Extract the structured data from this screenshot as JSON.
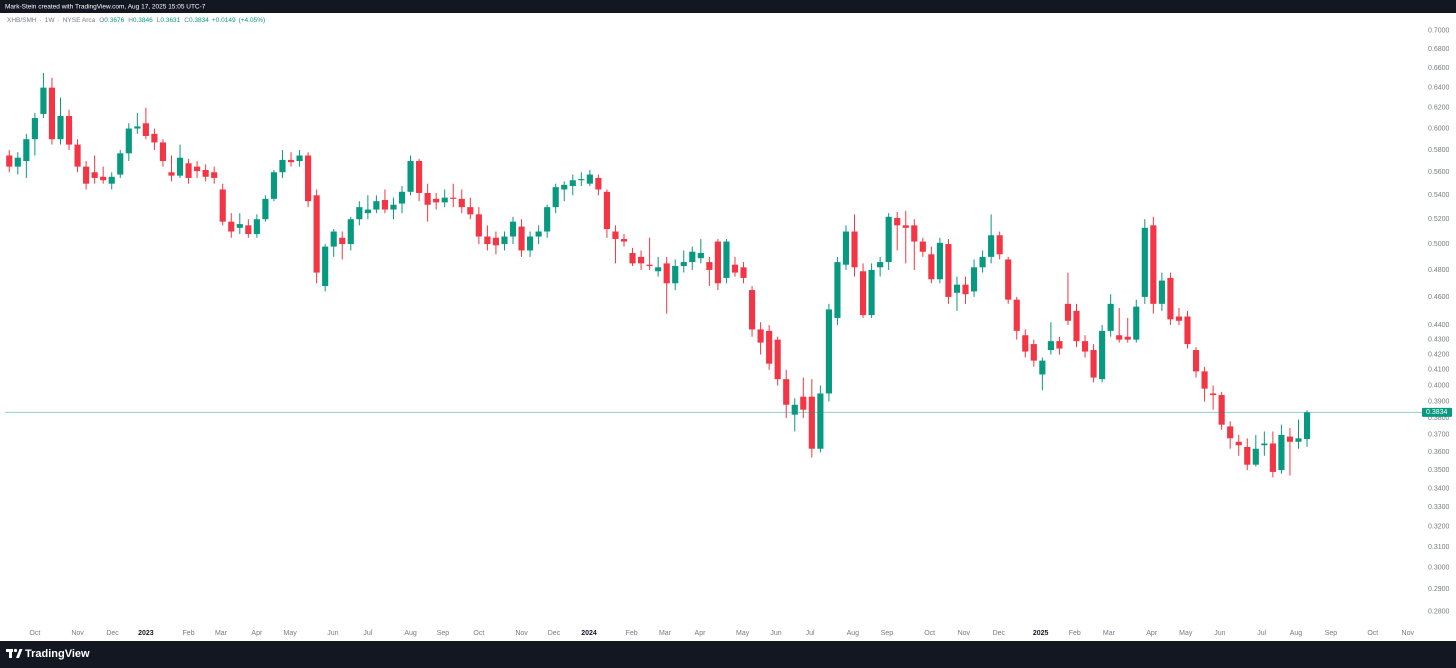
{
  "page": {
    "attribution": "Mark-Stein created with TradingView.com, Aug 17, 2025 15:05 UTC-7",
    "brand": "TradingView"
  },
  "chart_data": {
    "type": "candlestick",
    "symbol": "XHB/SMH",
    "interval": "1W",
    "exchange": "NYSE Arca",
    "ohlc_letters": [
      "O",
      "H",
      "L",
      "C"
    ],
    "change": "+0.0149",
    "change_pct": "(+4.05%)",
    "log_scale": true,
    "grid": false,
    "up_color": "#089981",
    "down_color": "#f23645",
    "xlim": [
      -0.5,
      165.7
    ],
    "ylim": [
      0.2741,
      0.72
    ],
    "yticks": [
      {
        "value": 0.7,
        "label": "0.7000"
      },
      {
        "value": 0.68,
        "label": "0.6800"
      },
      {
        "value": 0.66,
        "label": "0.6600"
      },
      {
        "value": 0.64,
        "label": "0.6400"
      },
      {
        "value": 0.62,
        "label": "0.6200"
      },
      {
        "value": 0.6,
        "label": "0.6000"
      },
      {
        "value": 0.58,
        "label": "0.5800"
      },
      {
        "value": 0.56,
        "label": "0.5600"
      },
      {
        "value": 0.54,
        "label": "0.5400"
      },
      {
        "value": 0.52,
        "label": "0.5200"
      },
      {
        "value": 0.5,
        "label": "0.5000"
      },
      {
        "value": 0.48,
        "label": "0.4800"
      },
      {
        "value": 0.46,
        "label": "0.4600"
      },
      {
        "value": 0.44,
        "label": "0.4400"
      },
      {
        "value": 0.43,
        "label": "0.4300"
      },
      {
        "value": 0.42,
        "label": "0.4200"
      },
      {
        "value": 0.41,
        "label": "0.4100"
      },
      {
        "value": 0.4,
        "label": "0.4000"
      },
      {
        "value": 0.39,
        "label": "0.3900"
      },
      {
        "value": 0.38,
        "label": "0.3800"
      },
      {
        "value": 0.37,
        "label": "0.3700"
      },
      {
        "value": 0.36,
        "label": "0.3600"
      },
      {
        "value": 0.35,
        "label": "0.3500"
      },
      {
        "value": 0.34,
        "label": "0.3400"
      },
      {
        "value": 0.33,
        "label": "0.3300"
      },
      {
        "value": 0.32,
        "label": "0.3200"
      },
      {
        "value": 0.31,
        "label": "0.3100"
      },
      {
        "value": 0.3,
        "label": "0.3000"
      },
      {
        "value": 0.29,
        "label": "0.2900"
      },
      {
        "value": 0.28,
        "label": "0.2800"
      }
    ],
    "xticks": [
      {
        "value": 3.0,
        "label": "Oct"
      },
      {
        "value": 8.0,
        "label": "Nov"
      },
      {
        "value": 12.1,
        "label": "Dec"
      },
      {
        "value": 16.0,
        "label": "2023"
      },
      {
        "value": 21.0,
        "label": "Feb"
      },
      {
        "value": 24.8,
        "label": "Mar"
      },
      {
        "value": 29.0,
        "label": "Apr"
      },
      {
        "value": 32.9,
        "label": "May"
      },
      {
        "value": 37.9,
        "label": "Jun"
      },
      {
        "value": 42.0,
        "label": "Jul"
      },
      {
        "value": 47.0,
        "label": "Aug"
      },
      {
        "value": 50.8,
        "label": "Sep"
      },
      {
        "value": 55.0,
        "label": "Oct"
      },
      {
        "value": 60.0,
        "label": "Nov"
      },
      {
        "value": 63.8,
        "label": "Dec"
      },
      {
        "value": 67.9,
        "label": "2024"
      },
      {
        "value": 72.9,
        "label": "Feb"
      },
      {
        "value": 76.8,
        "label": "Mar"
      },
      {
        "value": 80.9,
        "label": "Apr"
      },
      {
        "value": 85.9,
        "label": "May"
      },
      {
        "value": 89.8,
        "label": "Jun"
      },
      {
        "value": 93.8,
        "label": "Jul"
      },
      {
        "value": 98.8,
        "label": "Aug"
      },
      {
        "value": 102.8,
        "label": "Sep"
      },
      {
        "value": 107.8,
        "label": "Oct"
      },
      {
        "value": 111.8,
        "label": "Nov"
      },
      {
        "value": 115.9,
        "label": "Dec"
      },
      {
        "value": 120.8,
        "label": "2025"
      },
      {
        "value": 124.8,
        "label": "Feb"
      },
      {
        "value": 128.8,
        "label": "Mar"
      },
      {
        "value": 133.8,
        "label": "Apr"
      },
      {
        "value": 137.8,
        "label": "May"
      },
      {
        "value": 141.8,
        "label": "Jun"
      },
      {
        "value": 146.7,
        "label": "Jul"
      },
      {
        "value": 150.7,
        "label": "Aug"
      },
      {
        "value": 154.8,
        "label": "Sep"
      },
      {
        "value": 159.7,
        "label": "Oct"
      },
      {
        "value": 163.8,
        "label": "Nov"
      }
    ],
    "ohlc": [
      [
        0.575,
        0.58,
        0.56,
        0.565
      ],
      [
        0.565,
        0.578,
        0.558,
        0.573
      ],
      [
        0.57,
        0.595,
        0.555,
        0.59
      ],
      [
        0.59,
        0.615,
        0.575,
        0.61
      ],
      [
        0.614,
        0.655,
        0.61,
        0.64
      ],
      [
        0.64,
        0.65,
        0.585,
        0.59
      ],
      [
        0.59,
        0.63,
        0.585,
        0.612
      ],
      [
        0.612,
        0.618,
        0.58,
        0.585
      ],
      [
        0.585,
        0.59,
        0.56,
        0.565
      ],
      [
        0.565,
        0.57,
        0.545,
        0.55
      ],
      [
        0.56,
        0.575,
        0.55,
        0.555
      ],
      [
        0.556,
        0.565,
        0.55,
        0.553
      ],
      [
        0.55,
        0.56,
        0.545,
        0.556
      ],
      [
        0.558,
        0.58,
        0.555,
        0.577
      ],
      [
        0.577,
        0.605,
        0.57,
        0.6
      ],
      [
        0.6,
        0.615,
        0.595,
        0.602
      ],
      [
        0.605,
        0.62,
        0.59,
        0.593
      ],
      [
        0.595,
        0.6,
        0.58,
        0.587
      ],
      [
        0.587,
        0.59,
        0.565,
        0.57
      ],
      [
        0.56,
        0.575,
        0.552,
        0.557
      ],
      [
        0.557,
        0.585,
        0.555,
        0.573
      ],
      [
        0.568,
        0.572,
        0.55,
        0.555
      ],
      [
        0.565,
        0.57,
        0.555,
        0.561
      ],
      [
        0.562,
        0.567,
        0.552,
        0.556
      ],
      [
        0.56,
        0.565,
        0.55,
        0.555
      ],
      [
        0.545,
        0.55,
        0.515,
        0.518
      ],
      [
        0.518,
        0.525,
        0.505,
        0.51
      ],
      [
        0.513,
        0.525,
        0.508,
        0.516
      ],
      [
        0.515,
        0.52,
        0.505,
        0.508
      ],
      [
        0.508,
        0.524,
        0.505,
        0.52
      ],
      [
        0.52,
        0.54,
        0.518,
        0.537
      ],
      [
        0.537,
        0.562,
        0.535,
        0.56
      ],
      [
        0.56,
        0.58,
        0.555,
        0.571
      ],
      [
        0.571,
        0.578,
        0.565,
        0.569
      ],
      [
        0.57,
        0.58,
        0.565,
        0.575
      ],
      [
        0.575,
        0.578,
        0.53,
        0.535
      ],
      [
        0.54,
        0.545,
        0.47,
        0.478
      ],
      [
        0.468,
        0.5,
        0.464,
        0.498
      ],
      [
        0.498,
        0.512,
        0.49,
        0.51
      ],
      [
        0.505,
        0.51,
        0.488,
        0.5
      ],
      [
        0.5,
        0.522,
        0.495,
        0.52
      ],
      [
        0.52,
        0.535,
        0.515,
        0.53
      ],
      [
        0.525,
        0.54,
        0.52,
        0.528
      ],
      [
        0.528,
        0.54,
        0.525,
        0.535
      ],
      [
        0.536,
        0.545,
        0.525,
        0.528
      ],
      [
        0.528,
        0.538,
        0.52,
        0.532
      ],
      [
        0.533,
        0.548,
        0.525,
        0.543
      ],
      [
        0.543,
        0.575,
        0.54,
        0.57
      ],
      [
        0.57,
        0.572,
        0.535,
        0.542
      ],
      [
        0.542,
        0.55,
        0.518,
        0.532
      ],
      [
        0.537,
        0.542,
        0.528,
        0.534
      ],
      [
        0.534,
        0.545,
        0.53,
        0.538
      ],
      [
        0.538,
        0.55,
        0.53,
        0.537
      ],
      [
        0.537,
        0.545,
        0.525,
        0.53
      ],
      [
        0.53,
        0.538,
        0.52,
        0.524
      ],
      [
        0.524,
        0.53,
        0.5,
        0.506
      ],
      [
        0.506,
        0.515,
        0.495,
        0.5
      ],
      [
        0.505,
        0.51,
        0.492,
        0.499
      ],
      [
        0.5,
        0.51,
        0.495,
        0.506
      ],
      [
        0.506,
        0.522,
        0.5,
        0.518
      ],
      [
        0.514,
        0.52,
        0.49,
        0.495
      ],
      [
        0.495,
        0.51,
        0.49,
        0.506
      ],
      [
        0.506,
        0.515,
        0.5,
        0.51
      ],
      [
        0.51,
        0.532,
        0.505,
        0.53
      ],
      [
        0.53,
        0.55,
        0.525,
        0.547
      ],
      [
        0.545,
        0.552,
        0.535,
        0.549
      ],
      [
        0.548,
        0.558,
        0.54,
        0.553
      ],
      [
        0.553,
        0.56,
        0.548,
        0.554
      ],
      [
        0.55,
        0.562,
        0.548,
        0.558
      ],
      [
        0.555,
        0.558,
        0.54,
        0.545
      ],
      [
        0.543,
        0.545,
        0.505,
        0.512
      ],
      [
        0.51,
        0.515,
        0.485,
        0.504
      ],
      [
        0.504,
        0.508,
        0.498,
        0.502
      ],
      [
        0.493,
        0.497,
        0.483,
        0.485
      ],
      [
        0.49,
        0.495,
        0.48,
        0.485
      ],
      [
        0.484,
        0.505,
        0.48,
        0.483
      ],
      [
        0.479,
        0.49,
        0.475,
        0.482
      ],
      [
        0.485,
        0.49,
        0.448,
        0.47
      ],
      [
        0.47,
        0.488,
        0.465,
        0.483
      ],
      [
        0.483,
        0.495,
        0.478,
        0.486
      ],
      [
        0.486,
        0.498,
        0.48,
        0.494
      ],
      [
        0.489,
        0.504,
        0.485,
        0.493
      ],
      [
        0.486,
        0.49,
        0.468,
        0.48
      ],
      [
        0.502,
        0.504,
        0.465,
        0.47
      ],
      [
        0.474,
        0.504,
        0.47,
        0.502
      ],
      [
        0.484,
        0.49,
        0.475,
        0.478
      ],
      [
        0.482,
        0.486,
        0.47,
        0.474
      ],
      [
        0.465,
        0.468,
        0.432,
        0.437
      ],
      [
        0.437,
        0.442,
        0.42,
        0.428
      ],
      [
        0.436,
        0.44,
        0.41,
        0.414
      ],
      [
        0.43,
        0.432,
        0.4,
        0.404
      ],
      [
        0.404,
        0.41,
        0.38,
        0.388
      ],
      [
        0.382,
        0.392,
        0.372,
        0.388
      ],
      [
        0.393,
        0.405,
        0.38,
        0.385
      ],
      [
        0.393,
        0.404,
        0.357,
        0.362
      ],
      [
        0.362,
        0.4,
        0.36,
        0.395
      ],
      [
        0.395,
        0.455,
        0.39,
        0.451
      ],
      [
        0.445,
        0.49,
        0.44,
        0.486
      ],
      [
        0.484,
        0.515,
        0.48,
        0.51
      ],
      [
        0.51,
        0.524,
        0.475,
        0.482
      ],
      [
        0.479,
        0.485,
        0.445,
        0.447
      ],
      [
        0.447,
        0.485,
        0.445,
        0.48
      ],
      [
        0.482,
        0.49,
        0.475,
        0.486
      ],
      [
        0.486,
        0.525,
        0.48,
        0.522
      ],
      [
        0.521,
        0.526,
        0.495,
        0.515
      ],
      [
        0.515,
        0.527,
        0.485,
        0.513
      ],
      [
        0.515,
        0.52,
        0.48,
        0.502
      ],
      [
        0.502,
        0.505,
        0.49,
        0.494
      ],
      [
        0.492,
        0.498,
        0.47,
        0.473
      ],
      [
        0.473,
        0.505,
        0.47,
        0.501
      ],
      [
        0.5,
        0.504,
        0.455,
        0.46
      ],
      [
        0.463,
        0.475,
        0.45,
        0.469
      ],
      [
        0.469,
        0.475,
        0.455,
        0.462
      ],
      [
        0.464,
        0.488,
        0.46,
        0.482
      ],
      [
        0.482,
        0.495,
        0.478,
        0.49
      ],
      [
        0.49,
        0.524,
        0.485,
        0.507
      ],
      [
        0.507,
        0.51,
        0.488,
        0.492
      ],
      [
        0.488,
        0.49,
        0.455,
        0.458
      ],
      [
        0.458,
        0.46,
        0.43,
        0.436
      ],
      [
        0.433,
        0.437,
        0.418,
        0.422
      ],
      [
        0.427,
        0.43,
        0.412,
        0.416
      ],
      [
        0.407,
        0.418,
        0.397,
        0.416
      ],
      [
        0.423,
        0.442,
        0.42,
        0.429
      ],
      [
        0.429,
        0.432,
        0.42,
        0.424
      ],
      [
        0.455,
        0.478,
        0.44,
        0.443
      ],
      [
        0.45,
        0.455,
        0.425,
        0.429
      ],
      [
        0.429,
        0.433,
        0.418,
        0.422
      ],
      [
        0.423,
        0.427,
        0.402,
        0.405
      ],
      [
        0.404,
        0.44,
        0.402,
        0.436
      ],
      [
        0.436,
        0.462,
        0.432,
        0.455
      ],
      [
        0.433,
        0.452,
        0.428,
        0.43
      ],
      [
        0.432,
        0.445,
        0.428,
        0.43
      ],
      [
        0.43,
        0.458,
        0.428,
        0.453
      ],
      [
        0.46,
        0.52,
        0.455,
        0.513
      ],
      [
        0.515,
        0.522,
        0.448,
        0.455
      ],
      [
        0.455,
        0.478,
        0.45,
        0.472
      ],
      [
        0.474,
        0.478,
        0.44,
        0.444
      ],
      [
        0.446,
        0.452,
        0.44,
        0.443
      ],
      [
        0.446,
        0.45,
        0.424,
        0.427
      ],
      [
        0.423,
        0.425,
        0.405,
        0.409
      ],
      [
        0.409,
        0.412,
        0.39,
        0.398
      ],
      [
        0.395,
        0.4,
        0.385,
        0.394
      ],
      [
        0.394,
        0.396,
        0.373,
        0.376
      ],
      [
        0.375,
        0.378,
        0.362,
        0.368
      ],
      [
        0.366,
        0.37,
        0.358,
        0.364
      ],
      [
        0.363,
        0.368,
        0.35,
        0.353
      ],
      [
        0.353,
        0.37,
        0.352,
        0.362
      ],
      [
        0.364,
        0.372,
        0.358,
        0.365
      ],
      [
        0.365,
        0.372,
        0.346,
        0.349
      ],
      [
        0.35,
        0.376,
        0.348,
        0.37
      ],
      [
        0.369,
        0.374,
        0.347,
        0.366
      ],
      [
        0.366,
        0.379,
        0.362,
        0.368
      ],
      [
        0.3676,
        0.3846,
        0.3631,
        0.3834
      ]
    ]
  }
}
